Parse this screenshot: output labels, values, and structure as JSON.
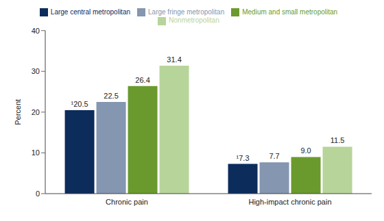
{
  "chart_data": {
    "type": "bar",
    "categories": [
      "Chronic pain",
      "High-impact chronic pain"
    ],
    "series": [
      {
        "name": "Large central metropolitan",
        "color": "#0c2c5c",
        "values": [
          20.5,
          7.3
        ],
        "value_labels": [
          "¹20.5",
          "¹7.3"
        ]
      },
      {
        "name": "Large fringe metropolitan",
        "color": "#8496b0",
        "values": [
          22.5,
          7.7
        ]
      },
      {
        "name": "Medium and small metropolitan",
        "color": "#6a9a2e",
        "values": [
          26.4,
          9.0
        ],
        "value_labels": [
          "26.4",
          "9.0"
        ]
      },
      {
        "name": "Nonmetropolitan",
        "color": "#b7d59a",
        "values": [
          31.4,
          11.5
        ]
      }
    ],
    "y_label": "Percent",
    "ylim": [
      0,
      40
    ],
    "yticks": [
      0,
      10,
      20,
      30,
      40
    ],
    "grid": false,
    "legend": "top",
    "data_labels": true
  }
}
